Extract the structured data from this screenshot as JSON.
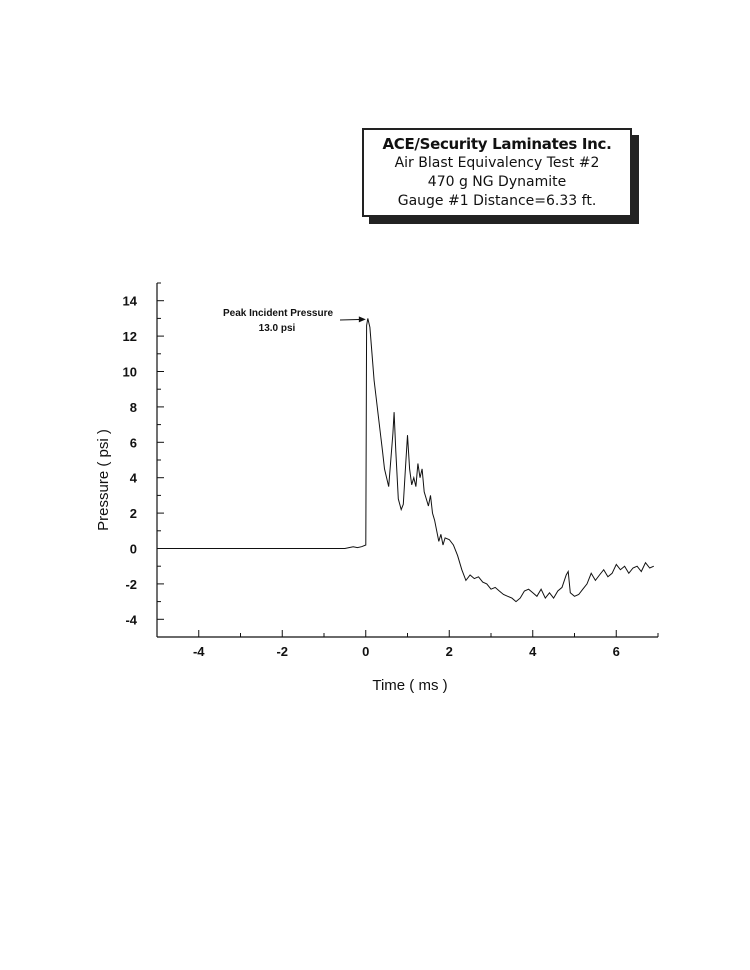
{
  "info_box": {
    "line1": "ACE/Security Laminates Inc.",
    "line2": "Air Blast Equivalency Test #2",
    "line3": "470 g NG Dynamite",
    "line4": "Gauge #1 Distance=6.33 ft."
  },
  "chart_data": {
    "type": "line",
    "title": "",
    "xlabel": "Time ( ms )",
    "ylabel": "Pressure ( psi )",
    "xlim": [
      -5,
      7
    ],
    "ylim": [
      -5,
      15
    ],
    "x_ticks": [
      -4,
      -2,
      0,
      2,
      4,
      6
    ],
    "y_ticks": [
      -4,
      -2,
      0,
      2,
      4,
      6,
      8,
      10,
      12,
      14
    ],
    "grid": false,
    "annotation": {
      "label": "Peak Incident Pressure",
      "value": "13.0 psi",
      "x": 0.05,
      "y": 13.0
    },
    "series": [
      {
        "name": "",
        "x": [
          -5.0,
          -1.0,
          -0.5,
          -0.4,
          -0.3,
          -0.2,
          -0.1,
          0.0,
          0.02,
          0.05,
          0.1,
          0.15,
          0.2,
          0.25,
          0.3,
          0.35,
          0.4,
          0.45,
          0.5,
          0.55,
          0.6,
          0.65,
          0.68,
          0.72,
          0.78,
          0.85,
          0.9,
          0.95,
          1.0,
          1.05,
          1.1,
          1.15,
          1.2,
          1.25,
          1.3,
          1.35,
          1.4,
          1.45,
          1.5,
          1.55,
          1.6,
          1.65,
          1.7,
          1.75,
          1.8,
          1.85,
          1.9,
          2.0,
          2.1,
          2.2,
          2.3,
          2.4,
          2.5,
          2.6,
          2.7,
          2.8,
          2.9,
          3.0,
          3.1,
          3.2,
          3.3,
          3.4,
          3.5,
          3.6,
          3.7,
          3.8,
          3.9,
          4.0,
          4.1,
          4.2,
          4.3,
          4.4,
          4.5,
          4.6,
          4.7,
          4.8,
          4.85,
          4.9,
          5.0,
          5.1,
          5.2,
          5.3,
          5.4,
          5.5,
          5.6,
          5.7,
          5.8,
          5.9,
          6.0,
          6.1,
          6.2,
          6.3,
          6.4,
          6.5,
          6.6,
          6.7,
          6.8,
          6.9
        ],
        "y": [
          0.0,
          0.0,
          0.0,
          0.05,
          0.1,
          0.05,
          0.1,
          0.2,
          12.6,
          13.0,
          12.5,
          11.0,
          9.5,
          8.5,
          7.5,
          6.5,
          5.5,
          4.5,
          4.0,
          3.5,
          5.0,
          6.5,
          7.7,
          5.5,
          2.8,
          2.2,
          2.5,
          4.5,
          6.4,
          4.5,
          3.6,
          4.0,
          3.5,
          4.8,
          4.0,
          4.5,
          3.2,
          2.8,
          2.4,
          3.0,
          2.0,
          1.6,
          1.0,
          0.4,
          0.8,
          0.2,
          0.6,
          0.5,
          0.2,
          -0.4,
          -1.2,
          -1.8,
          -1.5,
          -1.7,
          -1.6,
          -1.9,
          -2.0,
          -2.3,
          -2.2,
          -2.4,
          -2.6,
          -2.7,
          -2.8,
          -3.0,
          -2.8,
          -2.4,
          -2.3,
          -2.5,
          -2.7,
          -2.3,
          -2.8,
          -2.5,
          -2.8,
          -2.4,
          -2.2,
          -1.5,
          -1.3,
          -2.5,
          -2.7,
          -2.6,
          -2.3,
          -2.0,
          -1.4,
          -1.8,
          -1.5,
          -1.2,
          -1.6,
          -1.4,
          -0.9,
          -1.2,
          -1.0,
          -1.4,
          -1.1,
          -1.0,
          -1.3,
          -0.8,
          -1.1,
          -1.0
        ]
      }
    ]
  }
}
